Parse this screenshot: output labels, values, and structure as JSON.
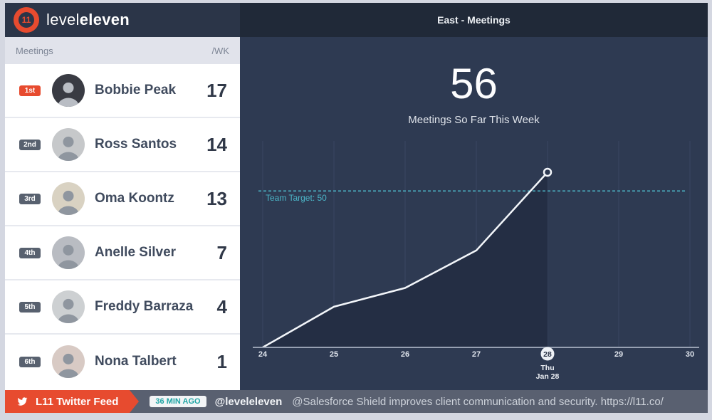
{
  "brand": {
    "logo_badge": "11",
    "logo_light": "level",
    "logo_bold": "eleven"
  },
  "sidebar": {
    "metric_label": "Meetings",
    "unit_label": "/WK",
    "rows": [
      {
        "rank": "1st",
        "name": "Bobbie Peak",
        "value": "17"
      },
      {
        "rank": "2nd",
        "name": "Ross Santos",
        "value": "14"
      },
      {
        "rank": "3rd",
        "name": "Oma Koontz",
        "value": "13"
      },
      {
        "rank": "4th",
        "name": "Anelle Silver",
        "value": "7"
      },
      {
        "rank": "5th",
        "name": "Freddy Barraza",
        "value": "4"
      },
      {
        "rank": "6th",
        "name": "Nona Talbert",
        "value": "1"
      }
    ]
  },
  "main": {
    "title": "East - Meetings",
    "big_number": "56",
    "subtitle": "Meetings So Far This Week",
    "target_label": "Team Target: 50"
  },
  "chart_data": {
    "type": "line",
    "title": "East - Meetings",
    "x": [
      24,
      25,
      26,
      27,
      28
    ],
    "values": [
      0,
      13,
      19,
      31,
      56
    ],
    "xticks": [
      "24",
      "25",
      "26",
      "27",
      "28",
      "29",
      "30"
    ],
    "highlight_tick": "28",
    "highlight_day": "Thu",
    "highlight_date": "Jan 28",
    "team_target": 50,
    "ylim": [
      0,
      66
    ],
    "grid": "vertical",
    "legend": "none",
    "colors": {
      "panel_bg": "#2e3a52",
      "area_fill": "#242e44",
      "line": "#f3f6fa",
      "target": "#4cb6c8",
      "gridline": "#3b4762",
      "axis": "#97a0b2"
    }
  },
  "ticker": {
    "feed_label": "L11 Twitter Feed",
    "time_badge": "36 MIN AGO",
    "handle": "@leveleleven",
    "tweet": "@Salesforce Shield improves client communication and security. https://l11.co/"
  }
}
